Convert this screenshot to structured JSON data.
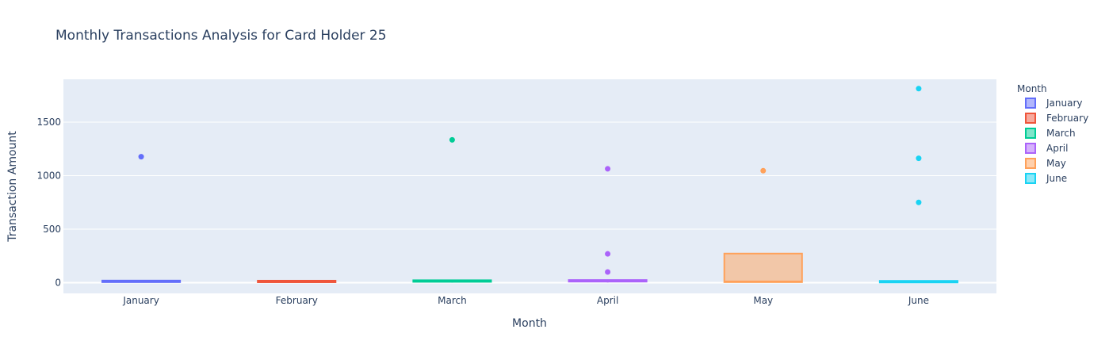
{
  "chart_data": {
    "type": "box",
    "title": "Monthly Transactions Analysis for Card Holder 25",
    "xlabel": "Month",
    "ylabel": "Transaction Amount",
    "ylim": [
      -100,
      1900
    ],
    "yticks": [
      0,
      500,
      1000,
      1500
    ],
    "ytick_labels": [
      "0",
      "500",
      "1000",
      "1500"
    ],
    "categories": [
      "January",
      "February",
      "March",
      "April",
      "May",
      "June"
    ],
    "grid": true,
    "legend": {
      "title": "Month",
      "position": "right"
    },
    "series": [
      {
        "name": "January",
        "color": "#636efa",
        "q1": 5,
        "median": 12,
        "q3": 18,
        "lower_fence": 1,
        "upper_fence": 20,
        "outliers": [
          1177
        ]
      },
      {
        "name": "February",
        "color": "#ef553b",
        "q1": 4,
        "median": 10,
        "q3": 14,
        "lower_fence": 1,
        "upper_fence": 17,
        "outliers": []
      },
      {
        "name": "March",
        "color": "#00cc96",
        "q1": 8,
        "median": 16,
        "q3": 22,
        "lower_fence": 1,
        "upper_fence": 24,
        "outliers": [
          1334
        ]
      },
      {
        "name": "April",
        "color": "#ab63fa",
        "q1": 10,
        "median": 15,
        "q3": 20,
        "lower_fence": 2,
        "upper_fence": 24,
        "outliers": [
          1064,
          269,
          100
        ]
      },
      {
        "name": "May",
        "color": "#ffa15a",
        "q1": 5,
        "median": 12,
        "q3": 272,
        "lower_fence": 2,
        "upper_fence": 275,
        "outliers": [
          1046
        ]
      },
      {
        "name": "June",
        "color": "#19d3f3",
        "q1": 2,
        "median": 5,
        "q3": 15,
        "lower_fence": 1,
        "upper_fence": 18,
        "outliers": [
          1813,
          1162,
          750
        ]
      }
    ]
  }
}
